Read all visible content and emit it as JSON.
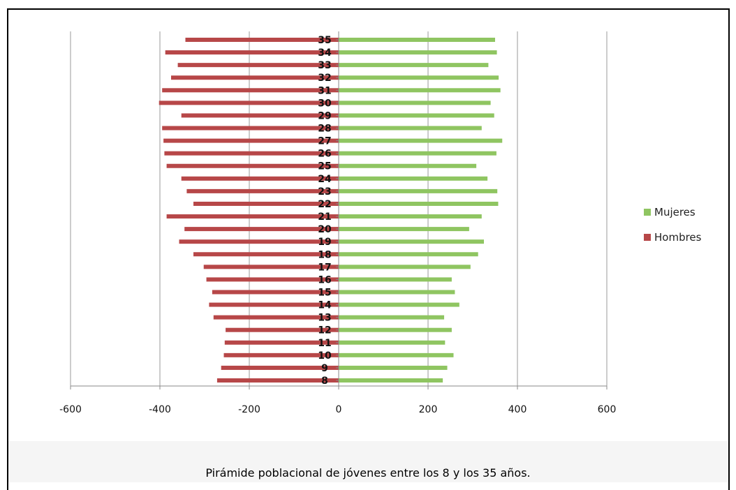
{
  "caption": "Pirámide poblacional de jóvenes entre los 8 y los 35 años.",
  "colors": {
    "mujeres": "#8fc561",
    "hombres": "#b74748",
    "grid": "#999999",
    "axis": "#888888"
  },
  "chart_data": {
    "type": "bar",
    "orientation": "horizontal",
    "title": "",
    "categories": [
      "8",
      "9",
      "10",
      "11",
      "12",
      "13",
      "14",
      "15",
      "16",
      "17",
      "18",
      "19",
      "20",
      "21",
      "22",
      "23",
      "24",
      "25",
      "26",
      "27",
      "28",
      "29",
      "30",
      "31",
      "32",
      "33",
      "34",
      "35"
    ],
    "series": [
      {
        "name": "Mujeres",
        "values": [
          233,
          243,
          257,
          238,
          253,
          236,
          270,
          260,
          253,
          295,
          312,
          325,
          292,
          320,
          357,
          355,
          333,
          308,
          353,
          366,
          320,
          348,
          340,
          362,
          358,
          335,
          354,
          350
        ]
      },
      {
        "name": "Hombres",
        "values": [
          -272,
          -263,
          -257,
          -255,
          -253,
          -280,
          -290,
          -283,
          -296,
          -302,
          -325,
          -357,
          -345,
          -385,
          -325,
          -340,
          -352,
          -385,
          -390,
          -392,
          -395,
          -352,
          -402,
          -395,
          -375,
          -360,
          -388,
          -343
        ]
      }
    ],
    "xlim": [
      -600,
      600
    ],
    "xticks": [
      -600,
      -400,
      -200,
      0,
      200,
      400,
      600
    ],
    "xlabel": "",
    "ylabel": "",
    "grid": "vertical",
    "legend": "right"
  }
}
